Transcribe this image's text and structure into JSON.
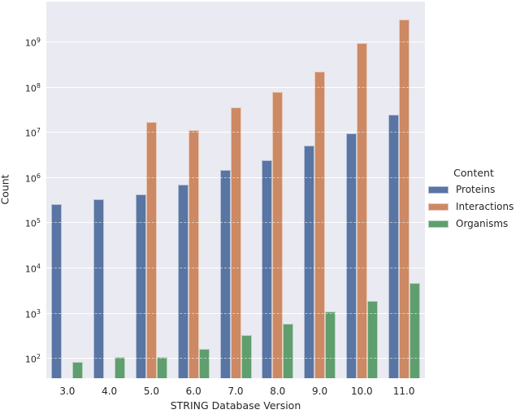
{
  "chart_data": {
    "type": "bar",
    "title": "",
    "xlabel": "STRING Database Version",
    "ylabel": "Count",
    "legend_title": "Content",
    "legend_position": "right of plot, vertically centered",
    "yscale": "log",
    "ylim_log10": [
      1.55,
      9.89
    ],
    "ytick_exponents": [
      2,
      3,
      4,
      5,
      6,
      7,
      8,
      9
    ],
    "grid": true,
    "categories": [
      "3.0",
      "4.0",
      "5.0",
      "6.0",
      "7.0",
      "8.0",
      "9.0",
      "10.0",
      "11.0"
    ],
    "series": [
      {
        "name": "Proteins",
        "color": "#5975a4",
        "values": [
          250000,
          330000,
          410000,
          690000,
          1450000,
          2400000,
          5000000,
          9300000,
          24000000
        ]
      },
      {
        "name": "Interactions",
        "color": "#cc8963",
        "values": [
          null,
          null,
          17000000,
          11200000,
          35000000,
          77000000,
          220000000,
          950000000,
          3100000000
        ]
      },
      {
        "name": "Organisms",
        "color": "#5f9e6e",
        "values": [
          80,
          105,
          105,
          160,
          320,
          570,
          1060,
          1800,
          4500
        ]
      }
    ],
    "colors": {
      "plot_background": "#eaeaf2",
      "figure_background": "#ffffff",
      "gridline": "#ffffff",
      "text": "#262626"
    }
  }
}
